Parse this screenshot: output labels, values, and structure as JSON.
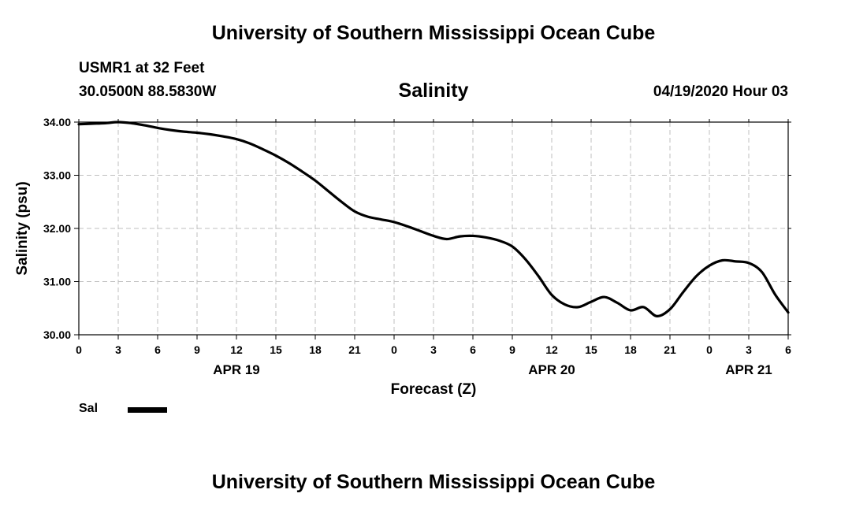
{
  "header": {
    "top_title": "University of Southern Mississippi Ocean Cube",
    "station": "USMR1 at 32 Feet",
    "coords": "30.0500N 88.5830W",
    "subtitle": "Salinity",
    "datetime": "04/19/2020 Hour 03"
  },
  "footer": {
    "bottom_title": "University of Southern Mississippi Ocean Cube"
  },
  "legend": {
    "label": "Sal"
  },
  "colors": {
    "line": "#000000",
    "grid": "#bfbfbf",
    "background": "#ffffff"
  },
  "chart_data": {
    "type": "line",
    "title": "Salinity",
    "xlabel": "Forecast (Z)",
    "ylabel": "Salinity (psu)",
    "ylim": [
      30.0,
      34.0
    ],
    "xlim": [
      0,
      54
    ],
    "yticks": [
      30.0,
      31.0,
      32.0,
      33.0,
      34.0
    ],
    "ytick_labels": [
      "30.00",
      "31.00",
      "32.00",
      "33.00",
      "34.00"
    ],
    "xticks": [
      0,
      3,
      6,
      9,
      12,
      15,
      18,
      21,
      24,
      27,
      30,
      33,
      36,
      39,
      42,
      45,
      48,
      51,
      54
    ],
    "xtick_labels": [
      "0",
      "3",
      "6",
      "9",
      "12",
      "15",
      "18",
      "21",
      "0",
      "3",
      "6",
      "9",
      "12",
      "15",
      "18",
      "21",
      "0",
      "3",
      "6"
    ],
    "date_labels": [
      {
        "hour": 12,
        "label": "APR 19"
      },
      {
        "hour": 36,
        "label": "APR 20"
      },
      {
        "hour": 51,
        "label": "APR 21"
      }
    ],
    "grid": true,
    "legend_position": "bottom-left",
    "series": [
      {
        "name": "Sal",
        "x": [
          0,
          1,
          2,
          3,
          4,
          5,
          6,
          7,
          8,
          9,
          10,
          11,
          12,
          13,
          14,
          15,
          16,
          17,
          18,
          19,
          20,
          21,
          22,
          23,
          24,
          25,
          26,
          27,
          28,
          29,
          30,
          31,
          32,
          33,
          34,
          35,
          36,
          37,
          38,
          39,
          40,
          41,
          42,
          43,
          44,
          45,
          46,
          47,
          48,
          49,
          50,
          51,
          52,
          53,
          54
        ],
        "values": [
          33.96,
          33.97,
          33.98,
          34.0,
          33.98,
          33.94,
          33.89,
          33.85,
          33.82,
          33.8,
          33.77,
          33.73,
          33.68,
          33.6,
          33.49,
          33.37,
          33.23,
          33.07,
          32.9,
          32.7,
          32.5,
          32.32,
          32.22,
          32.17,
          32.12,
          32.04,
          31.95,
          31.86,
          31.8,
          31.85,
          31.86,
          31.83,
          31.77,
          31.66,
          31.42,
          31.1,
          30.75,
          30.57,
          30.52,
          30.62,
          30.71,
          30.6,
          30.46,
          30.52,
          30.35,
          30.48,
          30.8,
          31.1,
          31.3,
          31.4,
          31.38,
          31.35,
          31.18,
          30.76,
          30.42
        ]
      }
    ]
  }
}
